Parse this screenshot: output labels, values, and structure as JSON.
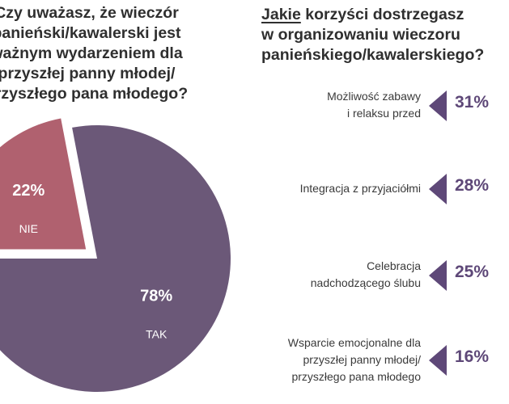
{
  "left_title_lines": [
    "Czy uważasz, że wieczór",
    "panieński/kawalerski jest",
    "ważnym wydarzeniem dla",
    "przyszłej panny młodej/",
    "przyszłego pana młodego?"
  ],
  "right_title": {
    "first_word": "Jakie",
    "line1_rest": " korzyści dostrzegasz",
    "line2": "w organizowaniu wieczoru",
    "line3": "panieńskiego/kawalerskiego?"
  },
  "colors": {
    "tak": "#6b5878",
    "nie": "#b0616f",
    "accent": "#5e4878",
    "text": "#2f2f2f"
  },
  "chart_data": [
    {
      "type": "pie",
      "title": "Czy uważasz, że wieczór panieński/kawalerski jest ważnym wydarzeniem dla przyszłej panny młodej/przyszłego pana młodego?",
      "slices": [
        {
          "label": "TAK",
          "value": 78,
          "display": "78%"
        },
        {
          "label": "NIE",
          "value": 22,
          "display": "22%",
          "exploded": true
        }
      ]
    },
    {
      "type": "bar",
      "title": "Jakie korzyści dostrzegasz w organizowaniu wieczoru panieńskiego/kawalerskiego?",
      "items": [
        {
          "label_lines": [
            "Możliwość zabawy",
            "i relaksu przed"
          ],
          "value": 31,
          "display": "31%"
        },
        {
          "label_lines": [
            "Integracja z przyjaciółmi"
          ],
          "value": 28,
          "display": "28%"
        },
        {
          "label_lines": [
            "Celebracja",
            "nadchodzącego ślubu"
          ],
          "value": 25,
          "display": "25%"
        },
        {
          "label_lines": [
            "Wsparcie emocjonalne dla",
            "przyszłej panny młodej/",
            "przyszłego pana młodego"
          ],
          "value": 16,
          "display": "16%"
        }
      ]
    }
  ]
}
